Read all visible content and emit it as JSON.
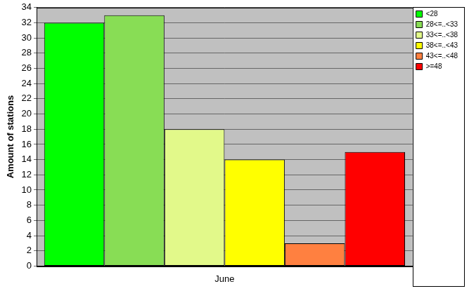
{
  "chart_data": {
    "type": "bar",
    "categories": [
      "June"
    ],
    "series": [
      {
        "name": "<28",
        "color": "#00ff00",
        "values": [
          32
        ]
      },
      {
        "name": "28<=..<33",
        "color": "#88dd55",
        "values": [
          33
        ]
      },
      {
        "name": "33<=..<38",
        "color": "#e2f98a",
        "values": [
          18
        ]
      },
      {
        "name": "38<=..<43",
        "color": "#ffff00",
        "values": [
          14
        ]
      },
      {
        "name": "43<=..<48",
        "color": "#ff8040",
        "values": [
          3
        ]
      },
      {
        "name": ">=48",
        "color": "#ff0000",
        "values": [
          15
        ]
      }
    ],
    "ylabel": "Amount of stations",
    "ylim": [
      0,
      34
    ],
    "yticks": [
      0,
      2,
      4,
      6,
      8,
      10,
      12,
      14,
      16,
      18,
      20,
      22,
      24,
      26,
      28,
      30,
      32,
      34
    ],
    "grid": true,
    "legend": "upper right"
  }
}
